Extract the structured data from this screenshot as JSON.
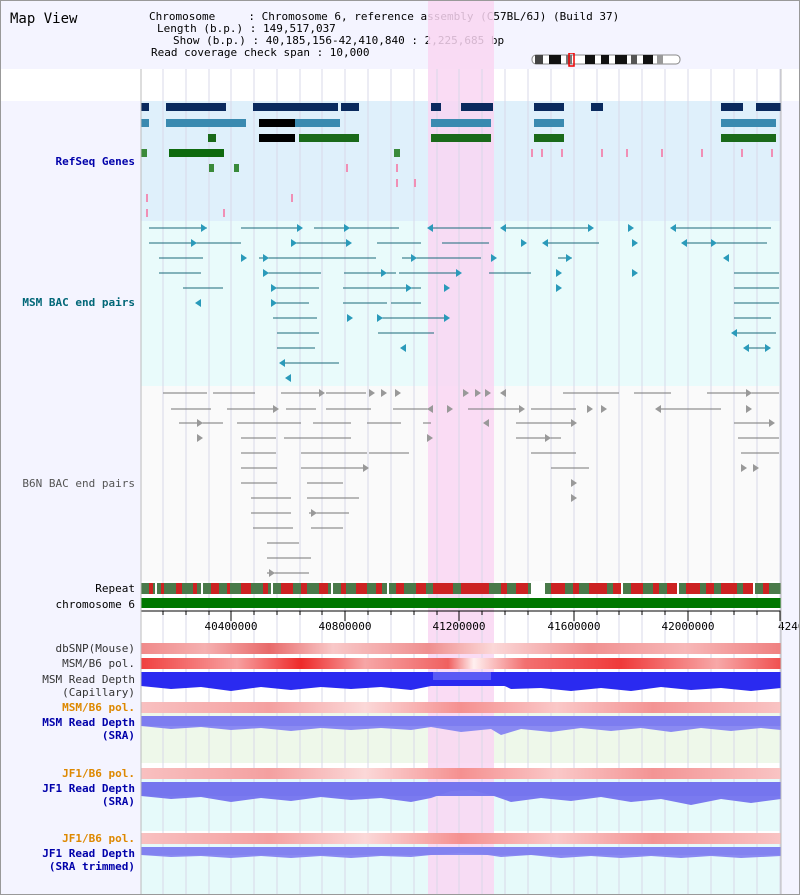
{
  "title": "Map View",
  "info": {
    "l1": "Chromosome     : Chromosome 6, reference assembly (C57BL/6J) (Build 37)",
    "l2": "Length (b.p.) : 149,517,037",
    "l3": "Show (b.p.) : 40,185,156-42,410,840 : 2,225,685 bp",
    "l4": "Read coverage check span : 10,000"
  },
  "tracks": {
    "refseq": "RefSeq Genes",
    "msm_bac": "MSM BAC end pairs",
    "b6n_bac": "B6N BAC end pairs",
    "repeat": "Repeat",
    "chromosome": "chromosome 6",
    "dbsnp": "dbSNP(Mouse)",
    "msm_pol_1": "MSM/B6 pol.",
    "msm_depth_cap_1": "MSM Read Depth",
    "msm_depth_cap_2": "(Capillary)",
    "msm_pol_2": "MSM/B6 pol.",
    "msm_depth_sra_1": "MSM Read Depth",
    "msm_depth_sra_2": "(SRA)",
    "jf1_pol_1": "JF1/B6 pol.",
    "jf1_depth_1": "JF1 Read Depth",
    "jf1_depth_2": "(SRA)",
    "jf1_pol_2": "JF1/B6 pol.",
    "jf1_depth_t1": "JF1 Read Depth",
    "jf1_depth_t2": "(SRA trimmed)"
  },
  "axis": {
    "ticks": [
      "40400000",
      "40800000",
      "41200000",
      "41600000",
      "42000000",
      "4240"
    ]
  },
  "colors": {
    "refseq_label": "#0000aa",
    "msm_label": "#006677",
    "b6n_label": "#555555",
    "orange_label": "#dd8800",
    "blue_label": "#0000aa",
    "highlight": "#f9d6f2",
    "chromosome_bar": "#007700"
  }
}
